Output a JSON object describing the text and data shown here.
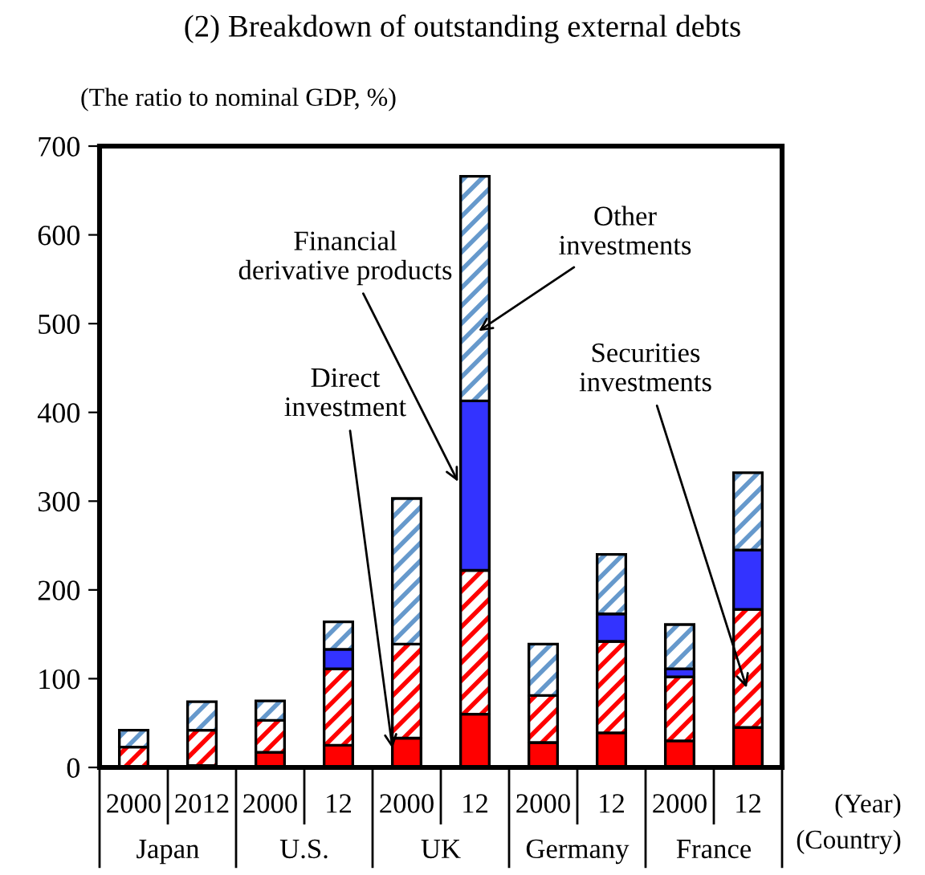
{
  "chart_data": {
    "type": "bar",
    "stacked": true,
    "title": "(2) Breakdown of outstanding external debts",
    "ylabel": "(The ratio to nominal GDP, %)",
    "categories": [
      "2000",
      "2012",
      "2000",
      "12",
      "2000",
      "12",
      "2000",
      "12",
      "2000",
      "12"
    ],
    "series": [
      {
        "name": "Direct investment",
        "color": "#ff0000",
        "values": [
          1,
          2,
          17,
          25,
          33,
          60,
          28,
          39,
          30,
          45
        ]
      },
      {
        "name": "Securities investments",
        "color": "#ff0000",
        "values": [
          22,
          40,
          36,
          86,
          106,
          162,
          53,
          103,
          72,
          133
        ]
      },
      {
        "name": "Financial derivative products",
        "color": "#3333ff",
        "values": [
          0,
          0,
          0,
          22,
          0,
          191,
          0,
          31,
          9,
          67
        ]
      },
      {
        "name": "Other investments",
        "color": "#6699cc",
        "values": [
          19,
          32,
          22,
          31,
          164,
          253,
          58,
          67,
          50,
          87
        ]
      }
    ],
    "ylim": [
      0,
      700
    ],
    "yticks": [
      0,
      100,
      200,
      300,
      400,
      500,
      600,
      700
    ],
    "grid": false,
    "legend": false,
    "annotations": [
      "Japan",
      "U.S.",
      "UK",
      "Germany",
      "France",
      "(Year)",
      "(Country)"
    ]
  }
}
